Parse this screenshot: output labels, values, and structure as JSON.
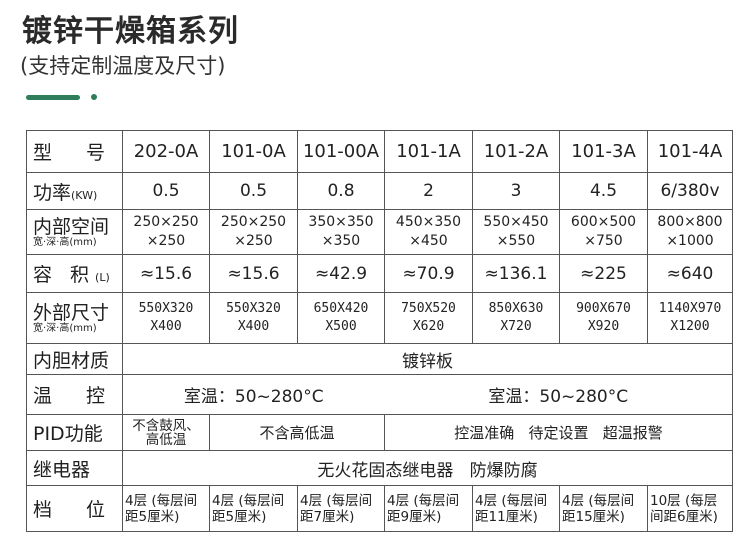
{
  "header": {
    "title": "镀锌干燥箱系列",
    "subtitle": "(支持定制温度及尺寸)",
    "accent_color": "#2f7d5a"
  },
  "table": {
    "rows": {
      "model": {
        "label": "型  号",
        "values": [
          "202-0A",
          "101-0A",
          "101-00A",
          "101-1A",
          "101-2A",
          "101-3A",
          "101-4A"
        ]
      },
      "power": {
        "label": "功率",
        "unit": "(KW)",
        "values": [
          "0.5",
          "0.5",
          "0.8",
          "2",
          "3",
          "4.5",
          "6/380v"
        ]
      },
      "inner_size": {
        "label": "内部空间",
        "sublabel": "宽·深·高(mm)",
        "values": [
          [
            "250×250",
            "×250"
          ],
          [
            "250×250",
            "×250"
          ],
          [
            "350×350",
            "×350"
          ],
          [
            "450×350",
            "×450"
          ],
          [
            "550×450",
            "×550"
          ],
          [
            "600×500",
            "×750"
          ],
          [
            "800×800",
            "×1000"
          ]
        ]
      },
      "volume": {
        "label": "容  积",
        "unit": "(L)",
        "values": [
          "≈15.6",
          "≈15.6",
          "≈42.9",
          "≈70.9",
          "≈136.1",
          "≈225",
          "≈640"
        ]
      },
      "outer_size": {
        "label": "外部尺寸",
        "sublabel": "宽·深·高(mm)",
        "values": [
          [
            "550X320",
            "X400"
          ],
          [
            "550X320",
            "X400"
          ],
          [
            "650X420",
            "X500"
          ],
          [
            "750X520",
            "X620"
          ],
          [
            "850X630",
            "X720"
          ],
          [
            "900X670",
            "X920"
          ],
          [
            "1140X970",
            "X1200"
          ]
        ]
      },
      "liner": {
        "label": "内胆材质",
        "value": "镀锌板"
      },
      "temp": {
        "label": "温  控",
        "left": "室温：50~280°C",
        "right": "室温：50~280°C"
      },
      "pid": {
        "label": "PID功能",
        "c1": [
          "不含鼓风、",
          "高低温"
        ],
        "c2": "不含高低温",
        "c3": "控温准确   待定设置   超温报警"
      },
      "relay": {
        "label": "继电器",
        "value": "无火花固态继电器   防爆防腐"
      },
      "shelves": {
        "label": "档  位",
        "values": [
          [
            "4层 (每层间",
            "距5厘米)"
          ],
          [
            "4层 (每层间",
            "距5厘米)"
          ],
          [
            "4层 (每层间",
            "距7厘米)"
          ],
          [
            "4层 (每层间",
            "距9厘米)"
          ],
          [
            "4层 (每层间",
            "距11厘米)"
          ],
          [
            "4层 (每层间",
            "距15厘米)"
          ],
          [
            "10层 (每层",
            "间距6厘米)"
          ]
        ]
      }
    }
  }
}
